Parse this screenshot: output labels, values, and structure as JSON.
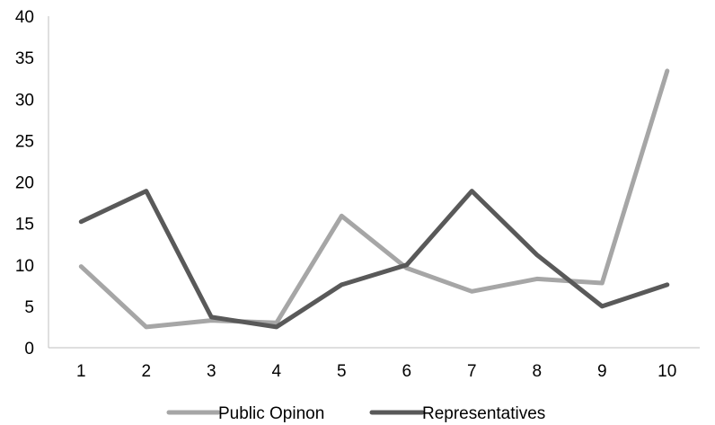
{
  "chart_data": {
    "type": "line",
    "x": [
      "1",
      "2",
      "3",
      "4",
      "5",
      "6",
      "7",
      "8",
      "9",
      "10"
    ],
    "series": [
      {
        "name": "Public Opinon",
        "color": "#a6a6a6",
        "values": [
          9.8,
          2.5,
          3.3,
          3.0,
          15.9,
          9.6,
          6.8,
          8.3,
          7.8,
          33.4
        ]
      },
      {
        "name": "Representatives",
        "color": "#595959",
        "values": [
          15.2,
          18.9,
          3.7,
          2.5,
          7.6,
          10.0,
          18.9,
          11.2,
          5.0,
          7.6
        ]
      }
    ],
    "ylim": [
      0,
      40
    ],
    "yticks": [
      "0",
      "5",
      "10",
      "15",
      "20",
      "25",
      "30",
      "35",
      "40"
    ],
    "grid": false,
    "legend": "bottom"
  }
}
